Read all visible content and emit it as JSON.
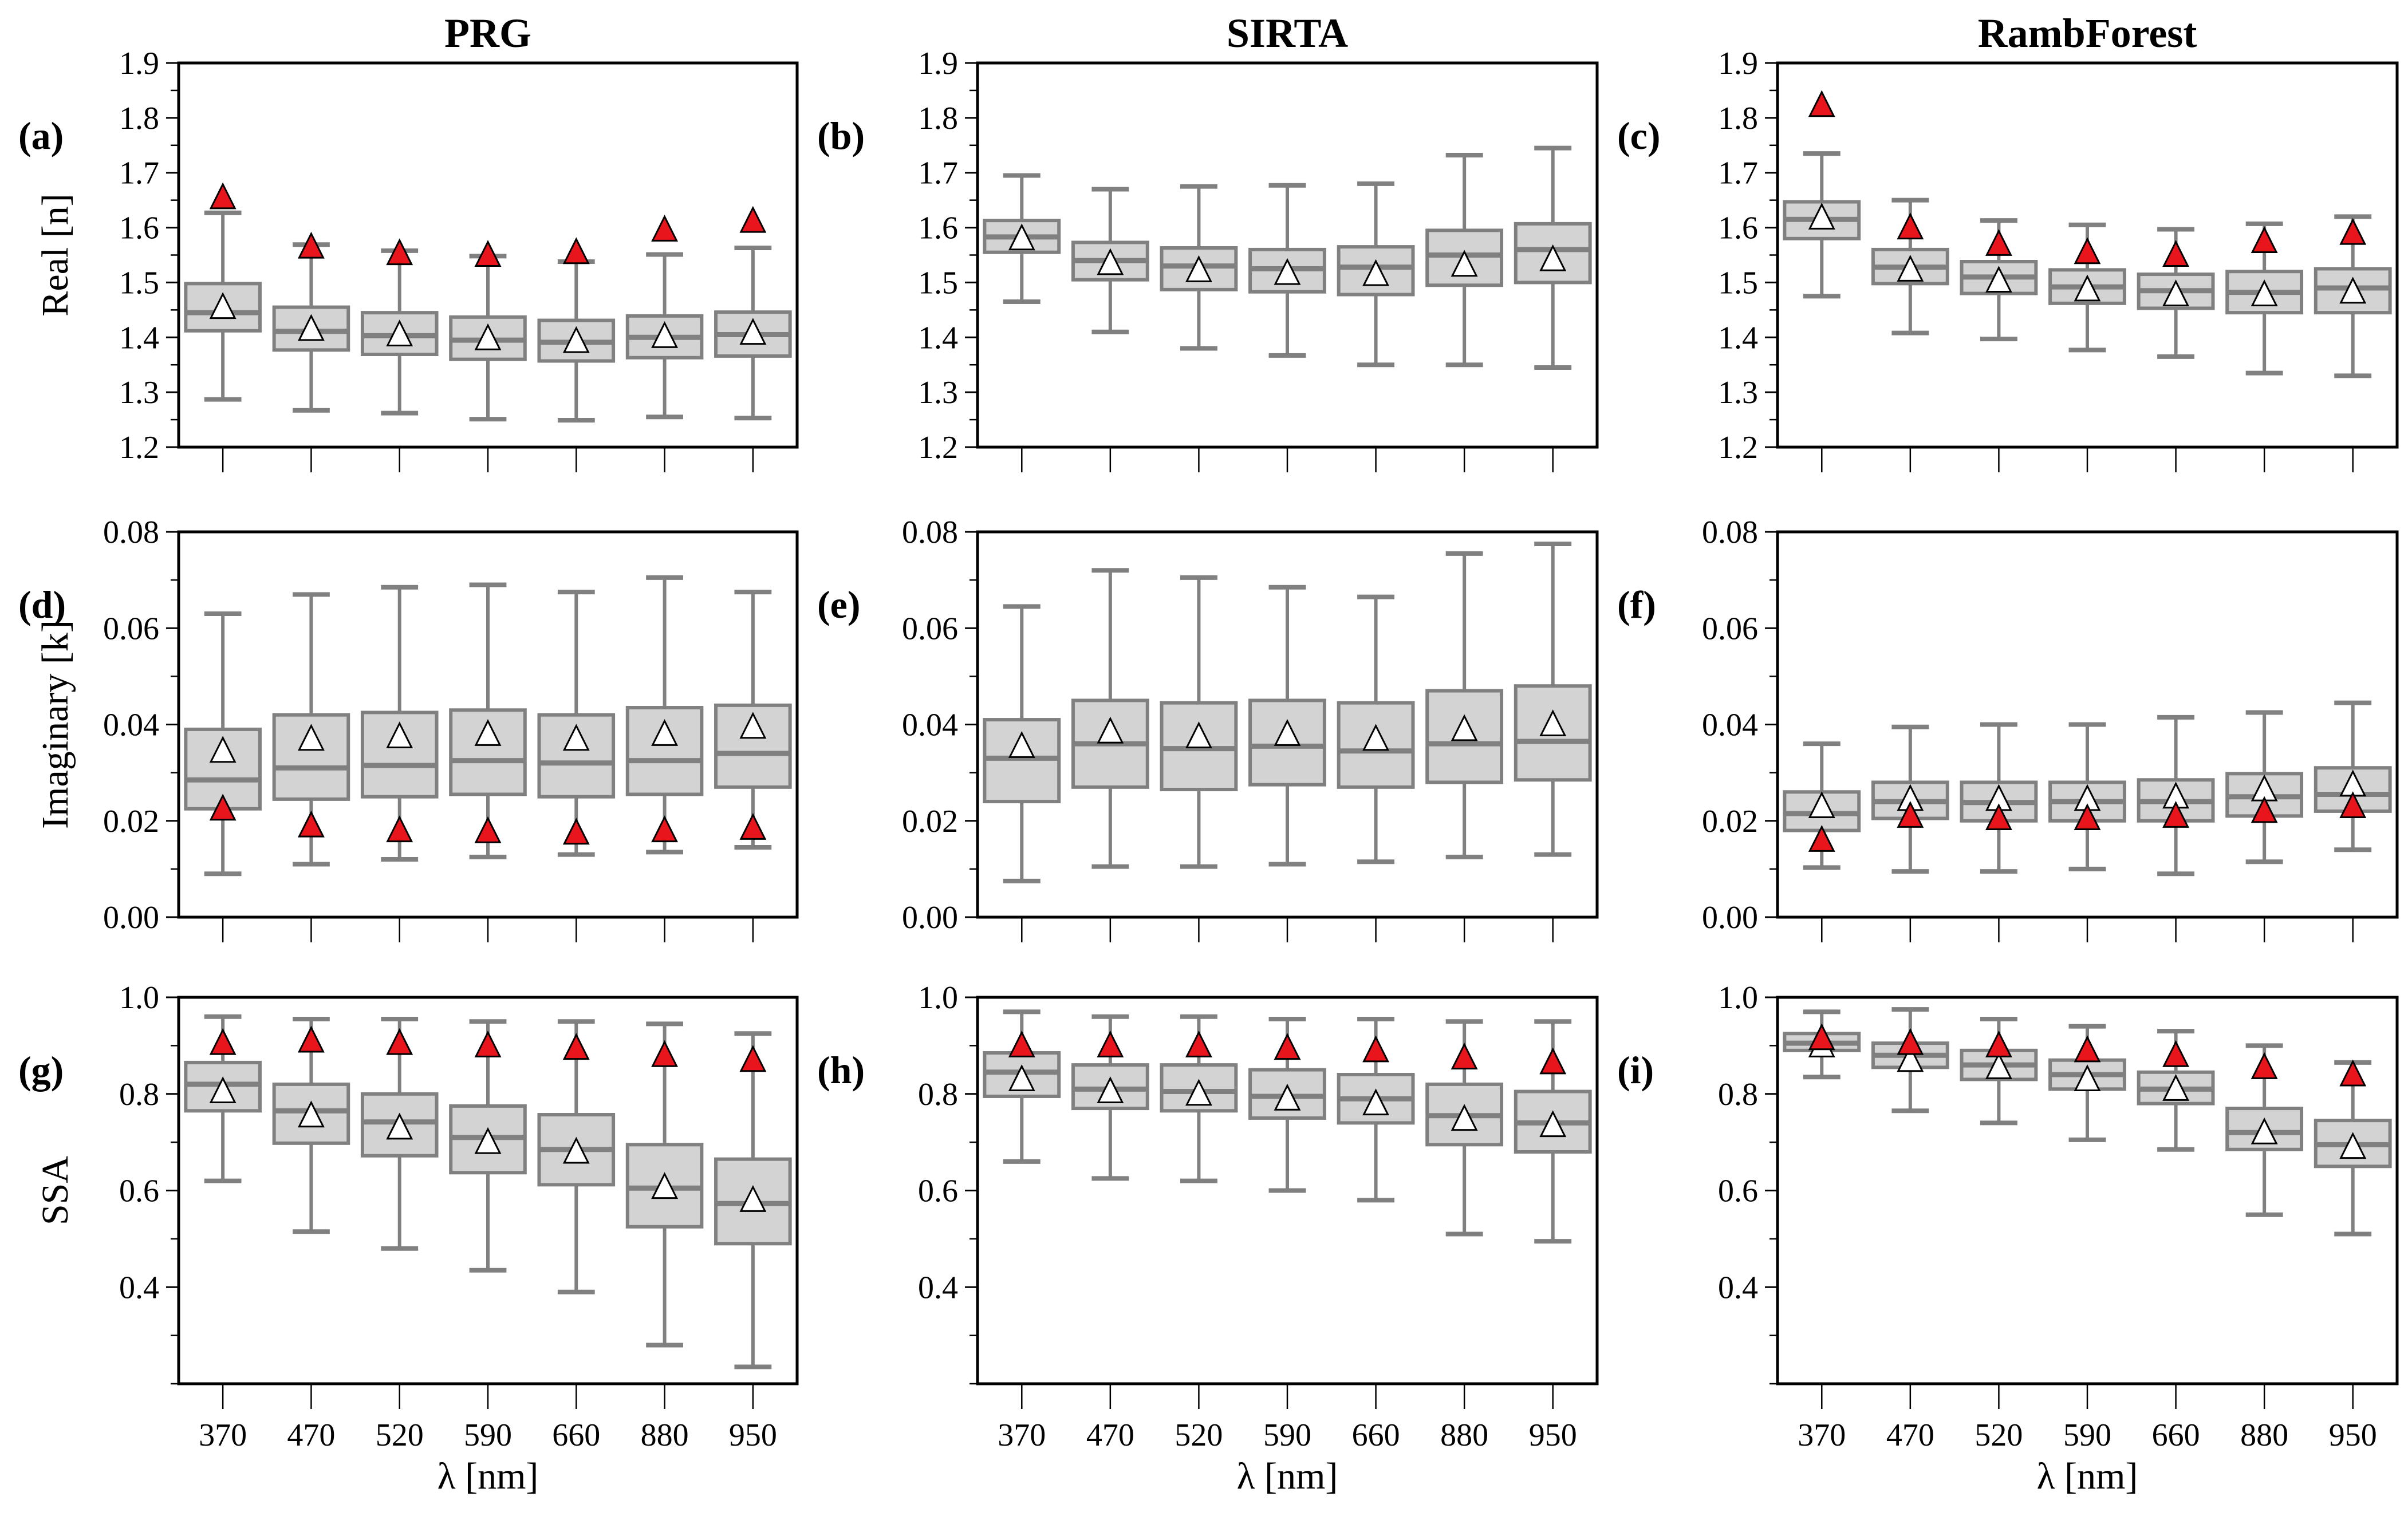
{
  "chart_data": {
    "type": "boxplot",
    "categories": [
      "370",
      "470",
      "520",
      "590",
      "660",
      "880",
      "950"
    ],
    "xlabel": "λ [nm]",
    "stat_order": [
      "whisker_low",
      "q1",
      "median",
      "q3",
      "whisker_high",
      "mean"
    ],
    "colors": {
      "box_fill": "#d3d3d3",
      "box_edge": "#808080",
      "mean_marker": "#ffffff",
      "red_marker": "#e8161c"
    },
    "columns": [
      "PRG",
      "SIRTA",
      "RambForest"
    ],
    "rows": [
      {
        "ylabel": "Real [n]",
        "ylim": [
          1.2,
          1.9
        ],
        "ticks": [
          "1.2",
          "1.3",
          "1.4",
          "1.5",
          "1.6",
          "1.7",
          "1.8",
          "1.9"
        ],
        "minor_step": 0.05
      },
      {
        "ylabel": "Imaginary [k]",
        "ylim": [
          0,
          0.08
        ],
        "ticks": [
          "0.00",
          "0.02",
          "0.04",
          "0.06",
          "0.08"
        ],
        "minor_step": 0.01
      },
      {
        "ylabel": "SSA",
        "ylim": [
          0.2,
          1.0
        ],
        "ticks": [
          "0.4",
          "0.6",
          "0.8",
          "1.0"
        ],
        "minor_step": 0.1
      }
    ],
    "panels": [
      {
        "label": "(a)",
        "row": 0,
        "col": 0,
        "stats": [
          [
            1.287,
            1.412,
            1.445,
            1.498,
            1.627,
            1.455
          ],
          [
            1.267,
            1.377,
            1.411,
            1.455,
            1.569,
            1.415
          ],
          [
            1.262,
            1.369,
            1.403,
            1.445,
            1.558,
            1.405
          ],
          [
            1.251,
            1.36,
            1.395,
            1.437,
            1.548,
            1.398
          ],
          [
            1.249,
            1.357,
            1.391,
            1.431,
            1.538,
            1.393
          ],
          [
            1.255,
            1.363,
            1.4,
            1.439,
            1.551,
            1.402
          ],
          [
            1.253,
            1.366,
            1.405,
            1.446,
            1.563,
            1.408
          ]
        ],
        "red": [
          1.655,
          1.565,
          1.553,
          1.55,
          1.555,
          1.596,
          1.612
        ]
      },
      {
        "label": "(b)",
        "row": 0,
        "col": 1,
        "stats": [
          [
            1.465,
            1.555,
            1.583,
            1.613,
            1.695,
            1.58
          ],
          [
            1.41,
            1.505,
            1.54,
            1.573,
            1.67,
            1.535
          ],
          [
            1.38,
            1.487,
            1.53,
            1.563,
            1.675,
            1.522
          ],
          [
            1.367,
            1.483,
            1.525,
            1.56,
            1.677,
            1.517
          ],
          [
            1.35,
            1.478,
            1.528,
            1.565,
            1.68,
            1.515
          ],
          [
            1.35,
            1.495,
            1.55,
            1.595,
            1.732,
            1.532
          ],
          [
            1.345,
            1.5,
            1.56,
            1.607,
            1.745,
            1.542
          ]
        ],
        "red": []
      },
      {
        "label": "(c)",
        "row": 0,
        "col": 2,
        "stats": [
          [
            1.475,
            1.58,
            1.615,
            1.647,
            1.735,
            1.618
          ],
          [
            1.408,
            1.498,
            1.528,
            1.56,
            1.65,
            1.523
          ],
          [
            1.397,
            1.48,
            1.51,
            1.538,
            1.613,
            1.503
          ],
          [
            1.377,
            1.462,
            1.492,
            1.523,
            1.605,
            1.487
          ],
          [
            1.365,
            1.453,
            1.485,
            1.515,
            1.597,
            1.478
          ],
          [
            1.335,
            1.445,
            1.482,
            1.52,
            1.607,
            1.478
          ],
          [
            1.33,
            1.445,
            1.49,
            1.525,
            1.62,
            1.483
          ]
        ],
        "red": [
          1.823,
          1.6,
          1.57,
          1.555,
          1.55,
          1.575,
          1.59
        ]
      },
      {
        "label": "(d)",
        "row": 1,
        "col": 0,
        "stats": [
          [
            0.009,
            0.0225,
            0.0285,
            0.039,
            0.063,
            0.0345
          ],
          [
            0.011,
            0.0245,
            0.031,
            0.042,
            0.067,
            0.037
          ],
          [
            0.012,
            0.025,
            0.0315,
            0.0425,
            0.0685,
            0.0375
          ],
          [
            0.0125,
            0.0255,
            0.0325,
            0.043,
            0.069,
            0.038
          ],
          [
            0.013,
            0.025,
            0.032,
            0.042,
            0.0675,
            0.037
          ],
          [
            0.0135,
            0.0255,
            0.0325,
            0.0435,
            0.0705,
            0.038
          ],
          [
            0.0145,
            0.027,
            0.034,
            0.044,
            0.0675,
            0.0395
          ]
        ],
        "red": [
          0.0225,
          0.019,
          0.018,
          0.0178,
          0.0175,
          0.018,
          0.0185
        ]
      },
      {
        "label": "(e)",
        "row": 1,
        "col": 1,
        "stats": [
          [
            0.0075,
            0.024,
            0.033,
            0.041,
            0.0645,
            0.0355
          ],
          [
            0.0105,
            0.027,
            0.036,
            0.045,
            0.072,
            0.0385
          ],
          [
            0.0105,
            0.0265,
            0.035,
            0.0445,
            0.0705,
            0.0375
          ],
          [
            0.011,
            0.0275,
            0.0355,
            0.045,
            0.0685,
            0.038
          ],
          [
            0.0115,
            0.027,
            0.0345,
            0.0445,
            0.0665,
            0.037
          ],
          [
            0.0125,
            0.028,
            0.036,
            0.047,
            0.0755,
            0.039
          ],
          [
            0.013,
            0.0285,
            0.0365,
            0.048,
            0.0775,
            0.04
          ]
        ],
        "red": []
      },
      {
        "label": "(f)",
        "row": 1,
        "col": 2,
        "stats": [
          [
            0.0103,
            0.018,
            0.0215,
            0.026,
            0.036,
            0.023
          ],
          [
            0.0095,
            0.0205,
            0.024,
            0.028,
            0.0395,
            0.0245
          ],
          [
            0.0095,
            0.02,
            0.0238,
            0.028,
            0.04,
            0.0245
          ],
          [
            0.01,
            0.02,
            0.024,
            0.028,
            0.04,
            0.0245
          ],
          [
            0.009,
            0.02,
            0.024,
            0.0285,
            0.0415,
            0.025
          ],
          [
            0.0115,
            0.021,
            0.025,
            0.0298,
            0.0425,
            0.0265
          ],
          [
            0.014,
            0.022,
            0.0255,
            0.031,
            0.0445,
            0.0275
          ]
        ],
        "red": [
          0.016,
          0.021,
          0.0205,
          0.0205,
          0.021,
          0.022,
          0.023
        ]
      },
      {
        "label": "(g)",
        "row": 2,
        "col": 0,
        "stats": [
          [
            0.62,
            0.765,
            0.82,
            0.865,
            0.96,
            0.805
          ],
          [
            0.515,
            0.698,
            0.765,
            0.82,
            0.955,
            0.755
          ],
          [
            0.48,
            0.672,
            0.742,
            0.8,
            0.955,
            0.73
          ],
          [
            0.435,
            0.637,
            0.71,
            0.775,
            0.95,
            0.7
          ],
          [
            0.39,
            0.612,
            0.685,
            0.757,
            0.95,
            0.68
          ],
          [
            0.28,
            0.525,
            0.605,
            0.695,
            0.945,
            0.607
          ],
          [
            0.235,
            0.49,
            0.573,
            0.665,
            0.925,
            0.58
          ]
        ],
        "red": [
          0.905,
          0.91,
          0.905,
          0.9,
          0.895,
          0.88,
          0.87
        ]
      },
      {
        "label": "(h)",
        "row": 2,
        "col": 1,
        "stats": [
          [
            0.66,
            0.795,
            0.845,
            0.885,
            0.97,
            0.83
          ],
          [
            0.625,
            0.77,
            0.81,
            0.86,
            0.96,
            0.805
          ],
          [
            0.62,
            0.765,
            0.805,
            0.86,
            0.96,
            0.8
          ],
          [
            0.6,
            0.75,
            0.795,
            0.85,
            0.955,
            0.79
          ],
          [
            0.58,
            0.74,
            0.79,
            0.84,
            0.955,
            0.78
          ],
          [
            0.51,
            0.695,
            0.755,
            0.82,
            0.95,
            0.748
          ],
          [
            0.495,
            0.68,
            0.74,
            0.805,
            0.95,
            0.735
          ]
        ],
        "red": [
          0.9,
          0.9,
          0.9,
          0.895,
          0.89,
          0.875,
          0.865
        ]
      },
      {
        "label": "(i)",
        "row": 2,
        "col": 2,
        "stats": [
          [
            0.835,
            0.89,
            0.905,
            0.925,
            0.97,
            0.9
          ],
          [
            0.765,
            0.855,
            0.88,
            0.905,
            0.975,
            0.87
          ],
          [
            0.74,
            0.83,
            0.86,
            0.89,
            0.955,
            0.855
          ],
          [
            0.705,
            0.81,
            0.84,
            0.87,
            0.94,
            0.83
          ],
          [
            0.685,
            0.78,
            0.81,
            0.845,
            0.93,
            0.81
          ],
          [
            0.55,
            0.685,
            0.72,
            0.77,
            0.9,
            0.72
          ],
          [
            0.51,
            0.65,
            0.695,
            0.745,
            0.865,
            0.69
          ]
        ],
        "red": [
          0.915,
          0.905,
          0.9,
          0.89,
          0.88,
          0.855,
          0.84
        ]
      }
    ]
  }
}
